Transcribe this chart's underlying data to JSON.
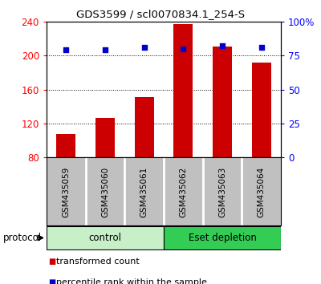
{
  "title": "GDS3599 / scl0070834.1_254-S",
  "categories": [
    "GSM435059",
    "GSM435060",
    "GSM435061",
    "GSM435062",
    "GSM435063",
    "GSM435064"
  ],
  "bar_values": [
    108,
    127,
    151,
    237,
    210,
    192
  ],
  "percentile_values": [
    79,
    79,
    81,
    80,
    82,
    81
  ],
  "bar_color": "#cc0000",
  "dot_color": "#0000cc",
  "ylim_left": [
    80,
    240
  ],
  "ylim_right": [
    0,
    100
  ],
  "yticks_left": [
    80,
    120,
    160,
    200,
    240
  ],
  "yticks_right": [
    0,
    25,
    50,
    75,
    100
  ],
  "ytick_labels_left": [
    "80",
    "120",
    "160",
    "200",
    "240"
  ],
  "ytick_labels_right": [
    "0",
    "25",
    "50",
    "75",
    "100%"
  ],
  "groups": [
    {
      "label": "control",
      "indices": [
        0,
        1,
        2
      ],
      "color": "#c8f0c8"
    },
    {
      "label": "Eset depletion",
      "indices": [
        3,
        4,
        5
      ],
      "color": "#33cc55"
    }
  ],
  "protocol_label": "protocol",
  "legend": [
    {
      "label": "transformed count",
      "color": "#cc0000"
    },
    {
      "label": "percentile rank within the sample",
      "color": "#0000cc"
    }
  ],
  "tick_bg_color": "#c0c0c0",
  "bar_width": 0.5,
  "figsize": [
    4.0,
    3.54
  ],
  "dpi": 100
}
